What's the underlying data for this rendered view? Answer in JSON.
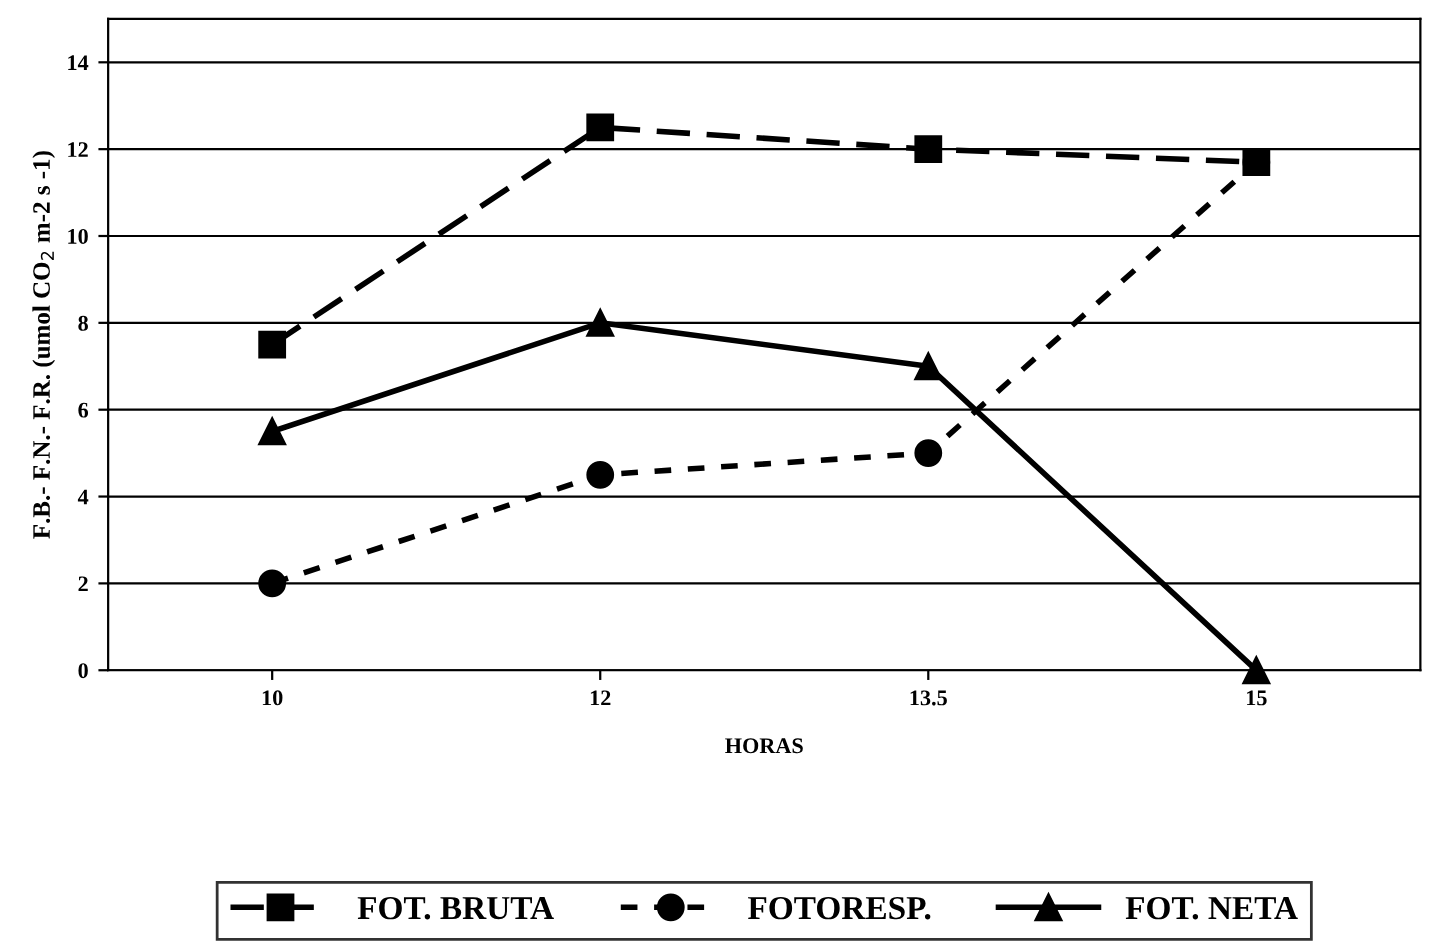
{
  "chart_data": {
    "type": "line",
    "xlabel": "HORAS",
    "ylabel": "F.B.- F.N.- F.R. (umol CO$_{2}$ m-2 s -1)",
    "categories": [
      "10",
      "12",
      "13.5",
      "15"
    ],
    "series": [
      {
        "name": "FOT. BRUTA",
        "color": "#000000",
        "values": [
          7.5,
          12.5,
          12,
          11.7
        ],
        "marker": "square",
        "line_style": "dashed"
      },
      {
        "name": "FOTORESP.",
        "color": "#000000",
        "values": [
          2,
          4.5,
          5,
          11.7
        ],
        "marker": "circle",
        "line_style": "dotted"
      },
      {
        "name": "FOT. NETA",
        "color": "#000000",
        "values": [
          5.5,
          8,
          7,
          0
        ],
        "marker": "triangle",
        "line_style": "solid"
      }
    ],
    "ylim": [
      0,
      15
    ],
    "yticks": [
      0,
      2,
      4,
      6,
      8,
      10,
      12,
      14
    ],
    "grid": "y",
    "legend": "bottom"
  }
}
